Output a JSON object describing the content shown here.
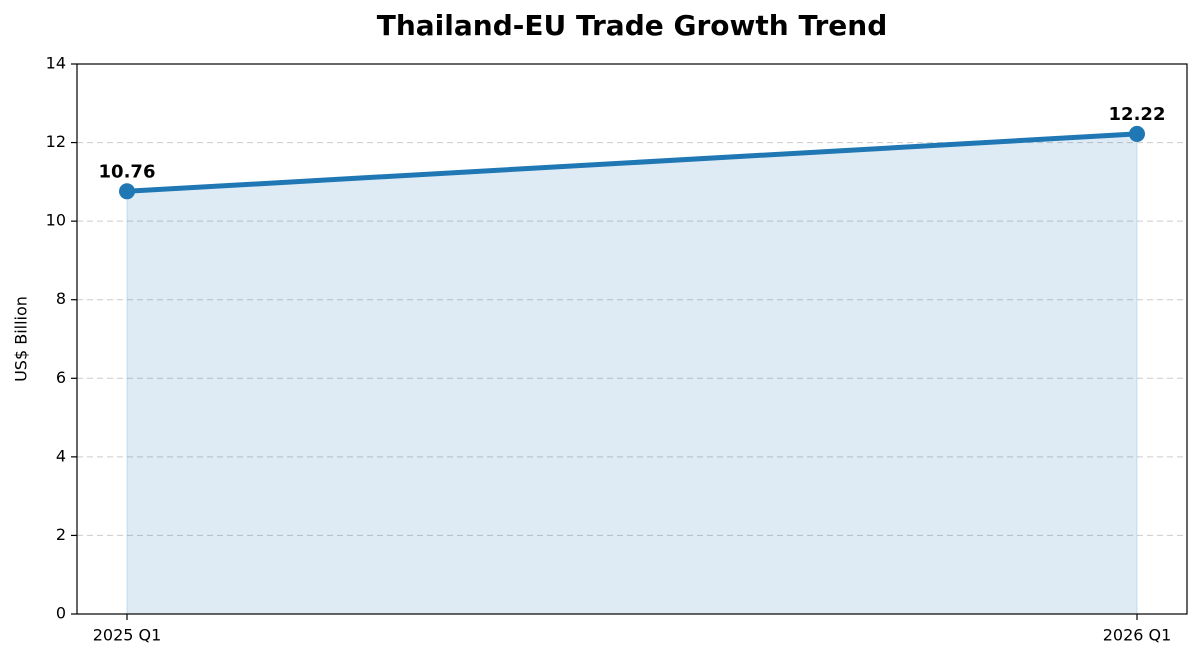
{
  "chart_data": {
    "type": "line",
    "title": "Thailand-EU Trade Growth Trend",
    "ylabel": "US$ Billion",
    "categories": [
      "2025 Q1",
      "2026 Q1"
    ],
    "values": [
      10.76,
      12.22
    ],
    "color": "#1f77b4",
    "fill_area": true,
    "ylim": [
      0,
      14
    ],
    "yticks": [
      0,
      2,
      4,
      6,
      8,
      10,
      12,
      14
    ],
    "grid": true
  }
}
